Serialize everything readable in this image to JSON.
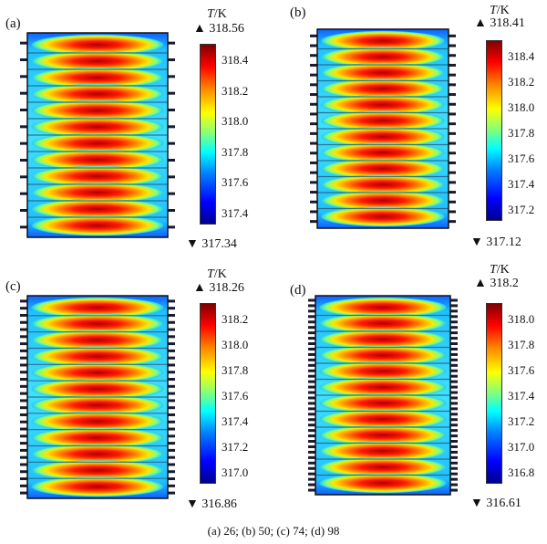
{
  "caption": "(a) 26; (b) 50; (c) 74; (d) 98",
  "unit_T": "T",
  "unit_K": "/K",
  "max_marker": "▲",
  "min_marker": "▼",
  "panels": [
    {
      "label": "(a)",
      "max": "318.56",
      "min": "317.34",
      "ticks": [
        "318.4",
        "318.2",
        "318.0",
        "317.8",
        "317.6",
        "317.4"
      ],
      "fins": 12,
      "bands": 12
    },
    {
      "label": "(b)",
      "max": "318.41",
      "min": "317.12",
      "ticks": [
        "318.4",
        "318.2",
        "318.0",
        "317.8",
        "317.6",
        "317.4",
        "317.2"
      ],
      "fins": 20,
      "bands": 12
    },
    {
      "label": "(c)",
      "max": "318.26",
      "min": "316.86",
      "ticks": [
        "318.2",
        "318.0",
        "317.8",
        "317.6",
        "317.4",
        "317.2",
        "317.0"
      ],
      "fins": 28,
      "bands": 12
    },
    {
      "label": "(d)",
      "max": "318.2",
      "min": "316.61",
      "ticks": [
        "318.0",
        "317.8",
        "317.6",
        "317.4",
        "317.2",
        "317.0",
        "316.8"
      ],
      "fins": 36,
      "bands": 12
    }
  ]
}
